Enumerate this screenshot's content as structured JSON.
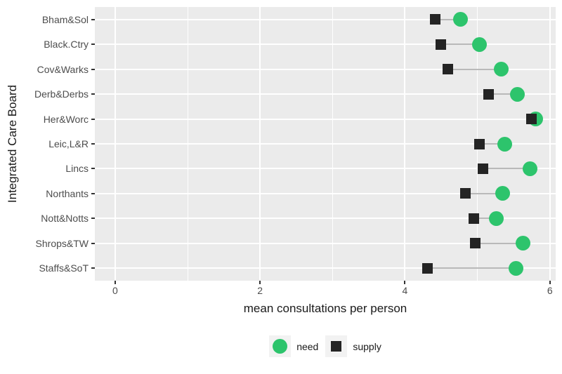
{
  "chart_data": {
    "type": "scatter",
    "variant": "dumbbell",
    "title": "",
    "xlabel": "mean consultations per person",
    "ylabel": "Integrated Care Board",
    "categories": [
      "Bham&Sol",
      "Black.Ctry",
      "Cov&Warks",
      "Derb&Derbs",
      "Her&Worc",
      "Leic,L&R",
      "Lincs",
      "Northants",
      "Nott&Notts",
      "Shrops&TW",
      "Staffs&SoT"
    ],
    "series": [
      {
        "name": "need",
        "marker": "circle",
        "color": "#2dc46c",
        "values": [
          4.77,
          5.03,
          5.33,
          5.55,
          5.8,
          5.38,
          5.73,
          5.35,
          5.26,
          5.63,
          5.53
        ]
      },
      {
        "name": "supply",
        "marker": "square",
        "color": "#242424",
        "values": [
          4.42,
          4.49,
          4.59,
          5.15,
          5.75,
          5.03,
          5.08,
          4.83,
          4.95,
          4.97,
          4.31
        ]
      }
    ],
    "xlim": [
      -0.28,
      6.08
    ],
    "x_major_ticks": [
      0,
      2,
      4,
      6
    ],
    "x_tick_labels": [
      "0",
      "2",
      "4",
      "6"
    ],
    "x_minor_gridlines": [
      1,
      3,
      5
    ],
    "grid": "on",
    "legend_position": "bottom",
    "panel_background": "#ebebeb",
    "gridline_color": "#ffffff",
    "connector_color": "#b9b9b9",
    "tick_color": "#333333",
    "axis_text_color": "#4d4d4d",
    "axis_title_color": "#1a1a1a",
    "legend_key_background": "#f2f2f2"
  }
}
